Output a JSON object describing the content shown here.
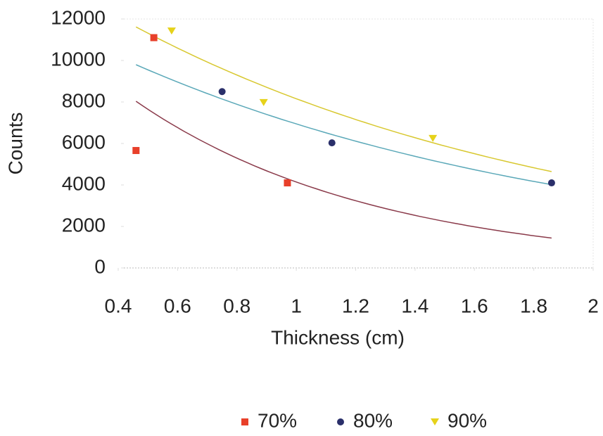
{
  "chart_data": {
    "type": "scatter",
    "x_label": "Thickness (cm)",
    "y_label": "Counts",
    "xlim": [
      0.4,
      2
    ],
    "xticks": [
      0.4,
      0.6,
      0.8,
      1,
      1.2,
      1.4,
      1.6,
      1.8,
      2
    ],
    "ylim": [
      0,
      12000
    ],
    "yticks": [
      0,
      2000,
      4000,
      6000,
      8000,
      10000,
      12000
    ],
    "trendline": "exponential",
    "legend": "bottom",
    "series": [
      {
        "name": "70%",
        "color": "#e8402a",
        "marker": "square",
        "trend_color": "#8a3a4a",
        "x": [
          0.46,
          0.52,
          0.97
        ],
        "values": [
          5660,
          11100,
          4100
        ]
      },
      {
        "name": "80%",
        "color": "#2a2f6a",
        "marker": "circle",
        "trend_color": "#5aa8b8",
        "x": [
          0.75,
          1.12,
          1.86
        ],
        "values": [
          8500,
          6030,
          4100
        ]
      },
      {
        "name": "90%",
        "color": "#e6d21a",
        "marker": "triangle",
        "trend_color": "#d8c830",
        "x": [
          0.58,
          0.89,
          1.46
        ],
        "values": [
          11420,
          7970,
          6240
        ]
      }
    ]
  }
}
